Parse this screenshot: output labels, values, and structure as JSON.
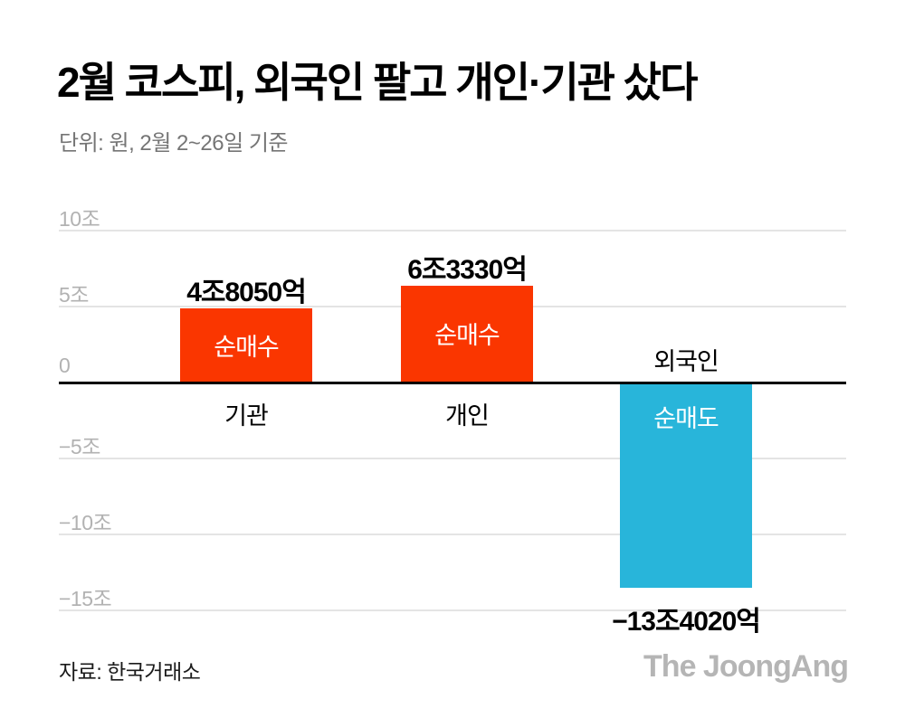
{
  "header": {
    "title": "2월 코스피, 외국인 팔고 개인·기관 샀다",
    "subtitle": "단위: 원, 2월 2~26일 기준"
  },
  "footer": {
    "source": "자료: 한국거래소",
    "logo": "The JoongAng"
  },
  "chart_data": {
    "type": "bar",
    "title": "2월 코스피, 외국인 팔고 개인·기관 샀다",
    "unit_note": "단위: 원, 2월 2~26일 기준",
    "ylabel": "조 원",
    "ylim": [
      -15,
      10
    ],
    "grid": true,
    "yticks": [
      {
        "value": 10,
        "label": "10조"
      },
      {
        "value": 5,
        "label": "5조"
      },
      {
        "value": 0,
        "label": "0"
      },
      {
        "value": -5,
        "label": "−5조"
      },
      {
        "value": -10,
        "label": "−10조"
      },
      {
        "value": -15,
        "label": "−15조"
      }
    ],
    "categories": [
      "기관",
      "개인",
      "외국인"
    ],
    "values": [
      4.805,
      6.333,
      -13.402
    ],
    "bars": [
      {
        "category": "기관",
        "value": 4.805,
        "value_label": "4조8050억",
        "inner_label": "순매수",
        "color": "#fa3600"
      },
      {
        "category": "개인",
        "value": 6.333,
        "value_label": "6조3330억",
        "inner_label": "순매수",
        "color": "#fa3600"
      },
      {
        "category": "외국인",
        "value": -13.402,
        "value_label": "−13조4020억",
        "inner_label": "순매도",
        "color": "#28b5da"
      }
    ],
    "colors": {
      "positive": "#fa3600",
      "negative": "#28b5da",
      "gridline": "#e4e4e4",
      "zero_line": "#000000",
      "tick_text": "#b2b2b2"
    },
    "legend": "none"
  }
}
